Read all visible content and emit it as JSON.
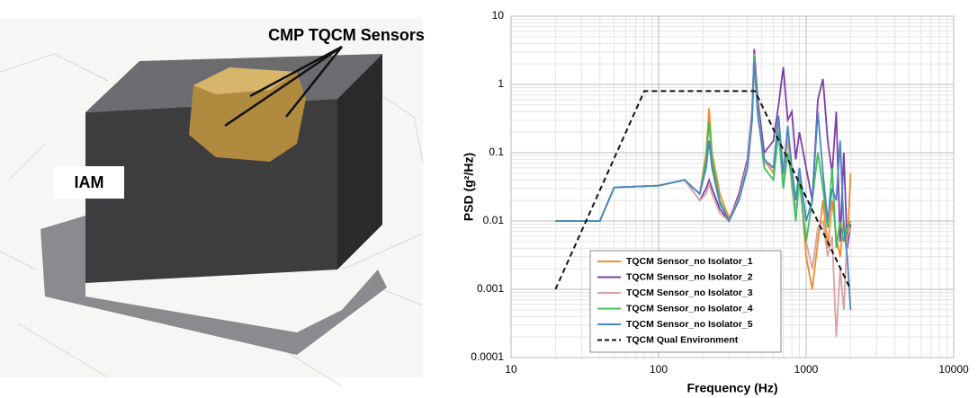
{
  "photo": {
    "labels": [
      "CMP TQCM Sensors",
      "IAM"
    ]
  },
  "chart_data": {
    "type": "line",
    "x_label": "Frequency (Hz)",
    "y_label": "PSD (g²/Hz)",
    "xlim": [
      10,
      10000
    ],
    "ylim": [
      0.0001,
      10
    ],
    "xticks": [
      10,
      100,
      1000,
      10000
    ],
    "yticks": [
      0.0001,
      0.001,
      0.01,
      0.1,
      1,
      10
    ],
    "xlog": true,
    "ylog": true,
    "grid": true,
    "minor_grid": true,
    "legend": "lower left",
    "x": [
      20,
      40,
      50,
      100,
      150,
      190,
      210,
      220,
      230,
      260,
      300,
      350,
      400,
      430,
      445,
      470,
      520,
      600,
      650,
      700,
      750,
      800,
      850,
      900,
      1000,
      1100,
      1200,
      1300,
      1400,
      1500,
      1600,
      1700,
      1800,
      1900,
      2000
    ],
    "series": [
      {
        "name": "TQCM Sensor_no Isolator_1",
        "color": "#f28a2e",
        "values": [
          0.01,
          0.01,
          0.031,
          0.033,
          0.04,
          0.025,
          0.1,
          0.45,
          0.1,
          0.025,
          0.011,
          0.02,
          0.06,
          0.3,
          3.0,
          0.5,
          0.08,
          0.05,
          0.3,
          0.04,
          0.15,
          0.05,
          0.02,
          0.05,
          0.003,
          0.001,
          0.005,
          0.02,
          0.004,
          0.02,
          0.006,
          0.003,
          0.01,
          0.004,
          0.05
        ]
      },
      {
        "name": "TQCM Sensor_no Isolator_2",
        "color": "#7b3fa8",
        "values": [
          0.01,
          0.01,
          0.031,
          0.033,
          0.04,
          0.02,
          0.03,
          0.04,
          0.03,
          0.015,
          0.01,
          0.025,
          0.08,
          0.4,
          3.3,
          0.6,
          0.1,
          0.15,
          0.5,
          1.8,
          0.3,
          0.4,
          0.08,
          0.2,
          0.06,
          0.02,
          0.6,
          1.2,
          0.15,
          0.05,
          0.4,
          0.005,
          0.1,
          0.004,
          0.009
        ]
      },
      {
        "name": "TQCM Sensor_no Isolator_3",
        "color": "#d9a3a3",
        "values": [
          0.01,
          0.01,
          0.031,
          0.033,
          0.04,
          0.02,
          0.025,
          0.035,
          0.025,
          0.013,
          0.01,
          0.022,
          0.07,
          0.35,
          2.8,
          0.45,
          0.07,
          0.06,
          0.25,
          0.03,
          0.2,
          0.03,
          0.015,
          0.04,
          0.005,
          0.002,
          0.008,
          0.01,
          0.003,
          0.006,
          0.0002,
          0.002,
          0.0005,
          0.006,
          0.008
        ]
      },
      {
        "name": "TQCM Sensor_no Isolator_4",
        "color": "#3cbf5c",
        "values": [
          0.01,
          0.01,
          0.031,
          0.033,
          0.04,
          0.025,
          0.08,
          0.28,
          0.08,
          0.02,
          0.01,
          0.02,
          0.06,
          0.3,
          2.6,
          0.4,
          0.06,
          0.04,
          0.2,
          0.03,
          0.1,
          0.04,
          0.01,
          0.04,
          0.005,
          0.02,
          0.1,
          0.03,
          0.008,
          0.06,
          0.004,
          0.01,
          0.005,
          0.008,
          0.01
        ]
      },
      {
        "name": "TQCM Sensor_no Isolator_5",
        "color": "#4a86c2",
        "values": [
          0.01,
          0.01,
          0.031,
          0.033,
          0.04,
          0.025,
          0.06,
          0.15,
          0.06,
          0.018,
          0.01,
          0.02,
          0.06,
          0.3,
          2.2,
          0.35,
          0.08,
          0.06,
          0.35,
          0.05,
          0.25,
          0.06,
          0.02,
          0.06,
          0.01,
          0.02,
          0.4,
          0.05,
          0.01,
          0.03,
          0.02,
          0.15,
          0.008,
          0.003,
          0.0005
        ]
      },
      {
        "name": "TQCM Qual Environment",
        "color": "#111111",
        "dashed": true,
        "x": [
          20,
          80,
          450,
          2000
        ],
        "values": [
          0.001,
          0.8,
          0.8,
          0.001
        ]
      }
    ]
  }
}
